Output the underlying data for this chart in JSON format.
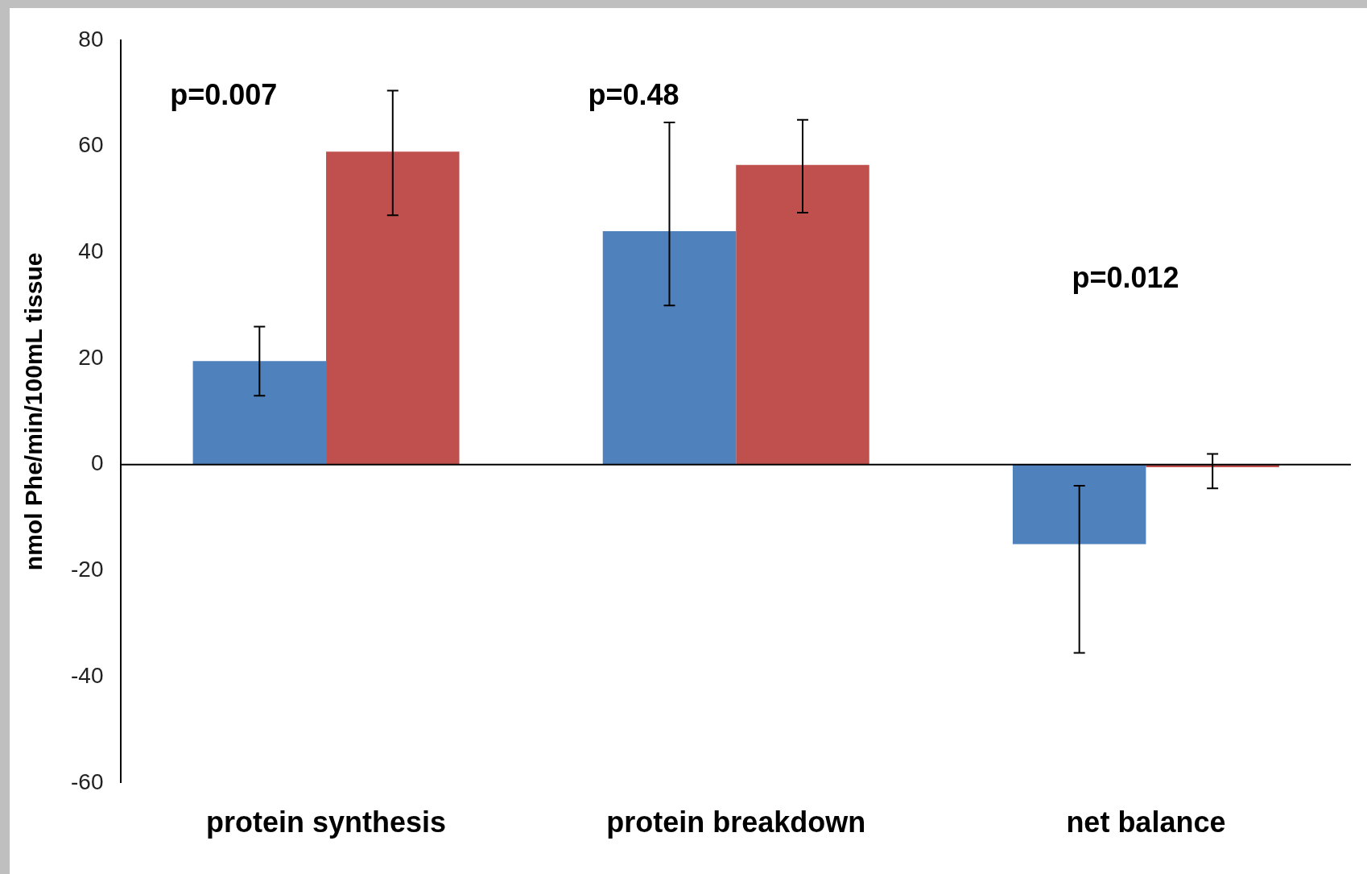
{
  "chart_data": {
    "type": "bar",
    "ylabel": "nmol Phe/min/100mL tissue",
    "categories": [
      "protein synthesis",
      "protein breakdown",
      "net balance"
    ],
    "series": [
      {
        "color": "#4f81bd",
        "values": [
          19.5,
          44,
          -15
        ],
        "errors": [
          [
            13,
            26
          ],
          [
            30,
            64.5
          ],
          [
            -35.5,
            -4
          ]
        ]
      },
      {
        "color": "#c0504d",
        "values": [
          59,
          56.5,
          -0.5
        ],
        "errors": [
          [
            47,
            70.5
          ],
          [
            47.5,
            65
          ],
          [
            -4.5,
            2
          ]
        ]
      }
    ],
    "ref_lines": [
      {
        "axis": "y",
        "value": 0,
        "color": "#000000"
      }
    ],
    "ylim": [
      -60,
      80
    ],
    "yticks": [
      -60,
      -40,
      -20,
      0,
      20,
      40,
      60,
      80
    ],
    "grid": false,
    "legend": false,
    "annotations": [
      "p=0.007",
      "p=0.48",
      "p=0.012"
    ]
  }
}
